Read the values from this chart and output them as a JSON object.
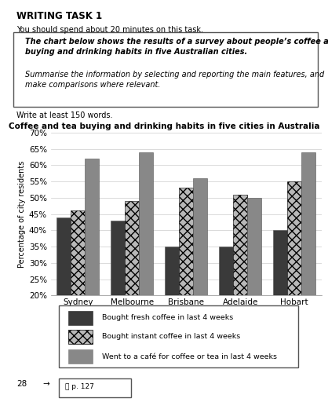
{
  "title": "Coffee and tea buying and drinking habits in five cities in Australia",
  "cities": [
    "Sydney",
    "Melbourne",
    "Brisbane",
    "Adelaide",
    "Hobart"
  ],
  "series": [
    {
      "label": "Bought fresh coffee in last 4 weeks",
      "values": [
        44,
        43,
        35,
        35,
        40
      ],
      "color": "#3a3a3a",
      "hatch": null
    },
    {
      "label": "Bought instant coffee in last 4 weeks",
      "values": [
        46,
        49,
        53,
        51,
        55
      ],
      "color": "#b8b8b8",
      "hatch": "xxx"
    },
    {
      "label": "Went to a café for coffee or tea in last 4 weeks",
      "values": [
        62,
        64,
        56,
        50,
        64
      ],
      "color": "#888888",
      "hatch": null
    }
  ],
  "ylabel": "Percentage of city residents",
  "ylim": [
    20,
    70
  ],
  "yticks": [
    20,
    25,
    30,
    35,
    40,
    45,
    50,
    55,
    60,
    65,
    70
  ],
  "bar_width": 0.26,
  "writing_task_header": "WRITING TASK 1",
  "instruction_line1": "You should spend about 20 minutes on this task.",
  "box_bold_text": "The chart below shows the results of a survey about people’s coffee and tea\nbuying and drinking habits in five Australian cities.",
  "box_italic_text": "Summarise the information by selecting and reporting the main features, and\nmake comparisons where relevant.",
  "write_prompt": "Write at least 150 words.",
  "footer_num": "28",
  "footer_arrow": "→",
  "footer_icon": "Ⓣ p. 127",
  "bg_color": "#ffffff",
  "grid_color": "#cccccc"
}
